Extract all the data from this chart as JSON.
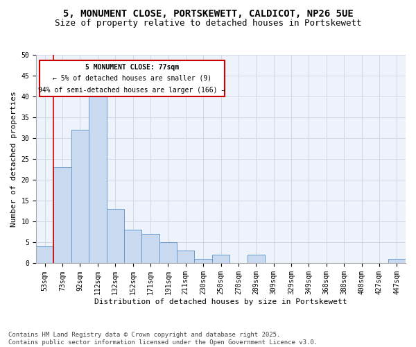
{
  "title_line1": "5, MONUMENT CLOSE, PORTSKEWETT, CALDICOT, NP26 5UE",
  "title_line2": "Size of property relative to detached houses in Portskewett",
  "xlabel": "Distribution of detached houses by size in Portskewett",
  "ylabel": "Number of detached properties",
  "footer": "Contains HM Land Registry data © Crown copyright and database right 2025.\nContains public sector information licensed under the Open Government Licence v3.0.",
  "bin_labels": [
    "53sqm",
    "73sqm",
    "92sqm",
    "112sqm",
    "132sqm",
    "152sqm",
    "171sqm",
    "191sqm",
    "211sqm",
    "230sqm",
    "250sqm",
    "270sqm",
    "289sqm",
    "309sqm",
    "329sqm",
    "349sqm",
    "368sqm",
    "388sqm",
    "408sqm",
    "427sqm",
    "447sqm"
  ],
  "bar_values": [
    4,
    23,
    32,
    40,
    13,
    8,
    7,
    5,
    3,
    1,
    2,
    0,
    2,
    0,
    0,
    0,
    0,
    0,
    0,
    0,
    1
  ],
  "bar_color": "#c9d9f0",
  "bar_edge_color": "#6699cc",
  "grid_color": "#d0d8e8",
  "background_color": "#eef2fa",
  "annotation_box_color": "#ffffff",
  "annotation_border_color": "#cc0000",
  "marker_line_color": "#cc0000",
  "annotation_text_line1": "5 MONUMENT CLOSE: 77sqm",
  "annotation_text_line2": "← 5% of detached houses are smaller (9)",
  "annotation_text_line3": "94% of semi-detached houses are larger (166) →",
  "ylim": [
    0,
    50
  ],
  "yticks": [
    0,
    5,
    10,
    15,
    20,
    25,
    30,
    35,
    40,
    45,
    50
  ],
  "title_fontsize": 10,
  "subtitle_fontsize": 9,
  "axis_label_fontsize": 8,
  "tick_fontsize": 7,
  "annotation_fontsize": 7,
  "footer_fontsize": 6.5
}
